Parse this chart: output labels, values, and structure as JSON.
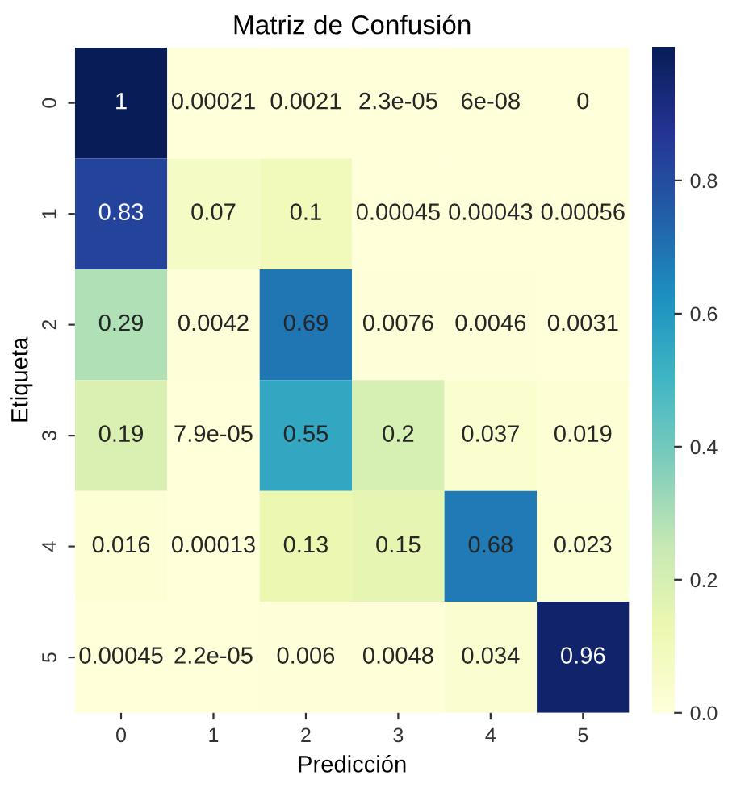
{
  "chart_data": {
    "type": "heatmap",
    "title": "Matriz de Confusión",
    "xlabel": "Predicción",
    "ylabel": "Etiqueta",
    "categories": [
      "0",
      "1",
      "2",
      "3",
      "4",
      "5"
    ],
    "y_categories": [
      "0",
      "1",
      "2",
      "3",
      "4",
      "5"
    ],
    "cells": [
      [
        1,
        0.00021,
        0.0021,
        2.3e-05,
        6e-08,
        0
      ],
      [
        0.83,
        0.07,
        0.1,
        0.00045,
        0.00043,
        0.00056
      ],
      [
        0.29,
        0.0042,
        0.69,
        0.0076,
        0.0046,
        0.0031
      ],
      [
        0.19,
        7.9e-05,
        0.55,
        0.2,
        0.037,
        0.019
      ],
      [
        0.016,
        0.00013,
        0.13,
        0.15,
        0.68,
        0.023
      ],
      [
        0.00045,
        2.2e-05,
        0.006,
        0.0048,
        0.034,
        0.96
      ]
    ],
    "data_labels": true,
    "clim": [
      0,
      1
    ],
    "cticks": [
      {
        "value": 0,
        "label": "0.0"
      },
      {
        "value": 0.2,
        "label": "0.2"
      },
      {
        "value": 0.4,
        "label": "0.4"
      },
      {
        "value": 0.6,
        "label": "0.6"
      },
      {
        "value": 0.8,
        "label": "0.8"
      }
    ]
  }
}
